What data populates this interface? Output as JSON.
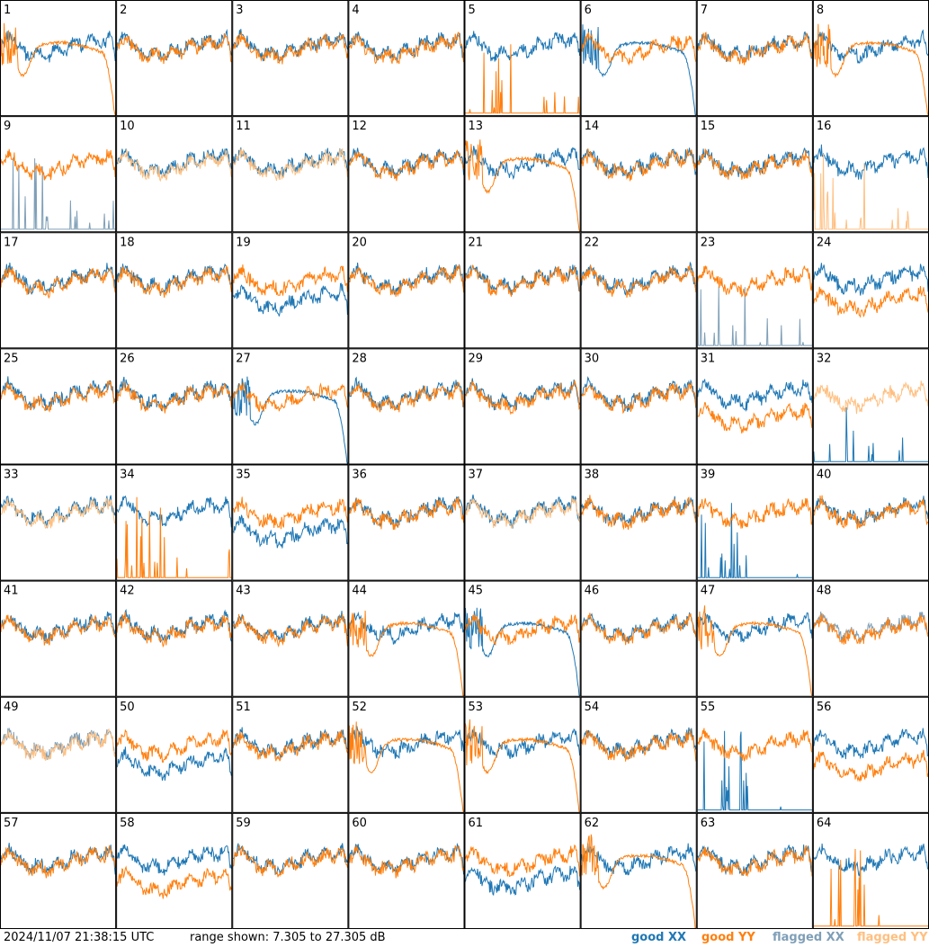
{
  "chart_data": {
    "type": "line",
    "panels": 64,
    "panel_labels": [
      "1",
      "2",
      "3",
      "4",
      "5",
      "6",
      "7",
      "8",
      "9",
      "10",
      "11",
      "12",
      "13",
      "14",
      "15",
      "16",
      "17",
      "18",
      "19",
      "20",
      "21",
      "22",
      "23",
      "24",
      "25",
      "26",
      "27",
      "28",
      "29",
      "30",
      "31",
      "32",
      "33",
      "34",
      "35",
      "36",
      "37",
      "38",
      "39",
      "40",
      "41",
      "42",
      "43",
      "44",
      "45",
      "46",
      "47",
      "48",
      "49",
      "50",
      "51",
      "52",
      "53",
      "54",
      "55",
      "56",
      "57",
      "58",
      "59",
      "60",
      "61",
      "62",
      "63",
      "64"
    ],
    "ylim": [
      7.305,
      27.305
    ],
    "series_legend": [
      {
        "key": "good_xx",
        "label": "good XX",
        "color": "#1f77b4"
      },
      {
        "key": "good_yy",
        "label": "good YY",
        "color": "#ff7f0e"
      },
      {
        "key": "flagged_xx",
        "label": "flagged XX",
        "color": "#7f9fb7"
      },
      {
        "key": "flagged_yy",
        "label": "flagged YY",
        "color": "#ffbf80"
      }
    ],
    "flagged_xx_panels": [
      9,
      23,
      48,
      49
    ],
    "flagged_yy_panels": [
      10,
      11,
      16,
      32,
      33,
      37,
      49
    ],
    "panel_styles": {
      "1": {
        "xx": "normal",
        "yy": "dip"
      },
      "5": {
        "xx": "normal",
        "yy": "spikes"
      },
      "6": {
        "xx": "dip",
        "yy": "normal"
      },
      "8": {
        "xx": "normal",
        "yy": "dip"
      },
      "9": {
        "xx": "spikes",
        "yy": "normal"
      },
      "13": {
        "xx": "normal",
        "yy": "dip"
      },
      "16": {
        "xx": "normal",
        "yy": "spikes"
      },
      "19": {
        "xx": "low",
        "yy": "normal"
      },
      "23": {
        "xx": "spikes",
        "yy": "normal"
      },
      "24": {
        "xx": "normal",
        "yy": "low"
      },
      "27": {
        "xx": "dip",
        "yy": "normal"
      },
      "31": {
        "xx": "normal",
        "yy": "low"
      },
      "32": {
        "xx": "spikes",
        "yy": "normal"
      },
      "34": {
        "xx": "normal",
        "yy": "spikes"
      },
      "35": {
        "xx": "low",
        "yy": "normal"
      },
      "39": {
        "xx": "spikes",
        "yy": "normal"
      },
      "44": {
        "xx": "normal",
        "yy": "dip"
      },
      "45": {
        "xx": "dip",
        "yy": "normal"
      },
      "47": {
        "xx": "normal",
        "yy": "dip"
      },
      "50": {
        "xx": "low",
        "yy": "normal"
      },
      "52": {
        "xx": "normal",
        "yy": "dip"
      },
      "53": {
        "xx": "normal",
        "yy": "dip"
      },
      "55": {
        "xx": "spikes",
        "yy": "normal"
      },
      "56": {
        "xx": "normal",
        "yy": "low"
      },
      "58": {
        "xx": "normal",
        "yy": "low"
      },
      "61": {
        "xx": "low",
        "yy": "normal"
      },
      "62": {
        "xx": "normal",
        "yy": "dip"
      },
      "64": {
        "xx": "normal",
        "yy": "spikes"
      }
    }
  },
  "footer": {
    "timestamp": "2024/11/07 21:38:15 UTC",
    "range_text": "range shown: 7.305 to 27.305 dB"
  }
}
